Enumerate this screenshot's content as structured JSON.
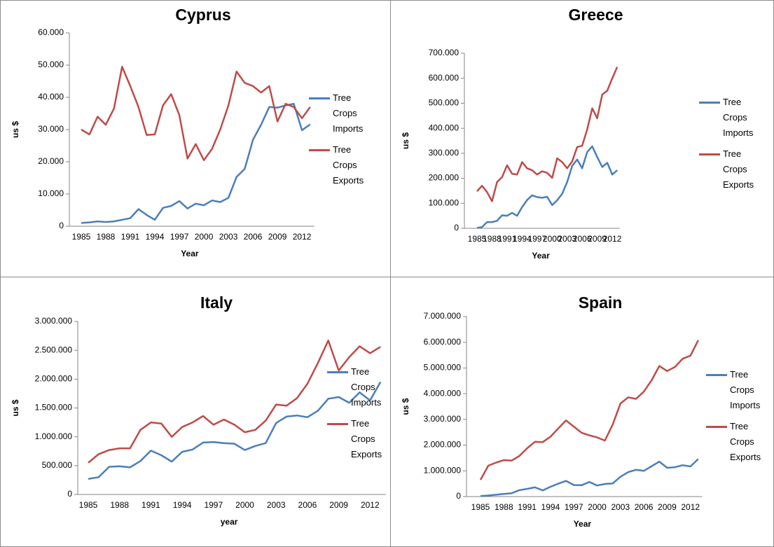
{
  "chart_data": [
    {
      "type": "line",
      "title": "Cyprus",
      "xlabel": "Year",
      "ylabel": "us $",
      "categories": [
        "1985",
        null,
        null,
        "1988",
        null,
        null,
        "1991",
        null,
        null,
        "1994",
        null,
        null,
        "1997",
        null,
        null,
        "2000",
        null,
        null,
        "2003",
        null,
        null,
        "2006",
        null,
        null,
        "2009",
        null,
        null,
        "2012",
        null
      ],
      "series": [
        {
          "name": "Tree Crops Imports",
          "color": "#4a7ebb",
          "values": [
            1000,
            1200,
            1500,
            1300,
            1500,
            2000,
            2500,
            5300,
            3500,
            2000,
            5700,
            6300,
            7800,
            5500,
            7000,
            6500,
            8000,
            7500,
            8800,
            15300,
            17800,
            26800,
            31500,
            37000,
            36800,
            37500,
            38000,
            29800,
            31600
          ]
        },
        {
          "name": "Tree Crops Exports",
          "color": "#be4b48",
          "values": [
            30000,
            28500,
            34000,
            31500,
            36500,
            49500,
            43500,
            37000,
            28300,
            28500,
            37500,
            41000,
            34500,
            21000,
            25500,
            20500,
            24000,
            30000,
            37500,
            48000,
            44500,
            43500,
            41500,
            43500,
            32500,
            38000,
            37000,
            33500,
            37000
          ]
        }
      ],
      "ylim": [
        0,
        60000
      ],
      "yticks": [
        0,
        {
          "value": 10000,
          "label": "10.000"
        },
        {
          "value": 20000,
          "label": "20.000"
        },
        {
          "value": 30000,
          "label": "30.000"
        },
        {
          "value": 40000,
          "label": "40.000"
        },
        {
          "value": 50000,
          "label": "50.000"
        },
        {
          "value": 60000,
          "label": "60.000"
        }
      ],
      "legend": "right"
    },
    {
      "type": "line",
      "title": "Greece",
      "xlabel": "Year",
      "ylabel": "us $",
      "categories": [
        "1985",
        null,
        null,
        "1988",
        null,
        null,
        "1991",
        null,
        null,
        "1994",
        null,
        null,
        "1997",
        null,
        null,
        "2000",
        null,
        null,
        "2003",
        null,
        null,
        "2006",
        null,
        null,
        "2009",
        null,
        null,
        "2012",
        null
      ],
      "series": [
        {
          "name": "Tree Crops Imports",
          "color": "#4a7ebb",
          "values": [
            2000,
            5000,
            25000,
            25000,
            30000,
            52000,
            50000,
            62000,
            50000,
            85000,
            113000,
            132000,
            125000,
            122000,
            126000,
            93000,
            112000,
            138000,
            185000,
            250000,
            275000,
            240000,
            305000,
            328000,
            285000,
            245000,
            262000,
            215000,
            232000
          ]
        },
        {
          "name": "Tree Crops Exports",
          "color": "#be4b48",
          "values": [
            148000,
            170000,
            145000,
            108000,
            185000,
            205000,
            252000,
            218000,
            215000,
            265000,
            240000,
            232000,
            215000,
            228000,
            222000,
            202000,
            280000,
            265000,
            240000,
            268000,
            325000,
            330000,
            395000,
            480000,
            440000,
            535000,
            550000,
            600000,
            645000
          ]
        }
      ],
      "ylim": [
        0,
        700000
      ],
      "yticks": [
        0,
        {
          "value": 100000,
          "label": "100.000"
        },
        {
          "value": 200000,
          "label": "200.000"
        },
        {
          "value": 300000,
          "label": "300.000"
        },
        {
          "value": 400000,
          "label": "400.000"
        },
        {
          "value": 500000,
          "label": "500.000"
        },
        {
          "value": 600000,
          "label": "600.000"
        },
        {
          "value": 700000,
          "label": "700.000"
        }
      ],
      "legend": "right"
    },
    {
      "type": "line",
      "title": "Italy",
      "xlabel": "year",
      "ylabel": "us $",
      "categories": [
        "1985",
        null,
        null,
        "1988",
        null,
        null,
        "1991",
        null,
        null,
        "1994",
        null,
        null,
        "1997",
        null,
        null,
        "2000",
        null,
        null,
        "2003",
        null,
        null,
        "2006",
        null,
        null,
        "2009",
        null,
        null,
        "2012",
        null
      ],
      "series": [
        {
          "name": "Tree Crops Imports",
          "color": "#4a7ebb",
          "values": [
            270000,
            300000,
            480000,
            490000,
            470000,
            580000,
            760000,
            680000,
            570000,
            740000,
            780000,
            900000,
            910000,
            890000,
            880000,
            770000,
            840000,
            890000,
            1240000,
            1350000,
            1370000,
            1340000,
            1450000,
            1660000,
            1690000,
            1590000,
            1770000,
            1630000,
            1950000
          ]
        },
        {
          "name": "Tree Crops Exports",
          "color": "#be4b48",
          "values": [
            550000,
            700000,
            770000,
            800000,
            800000,
            1120000,
            1250000,
            1230000,
            1000000,
            1170000,
            1250000,
            1360000,
            1210000,
            1300000,
            1210000,
            1080000,
            1120000,
            1280000,
            1560000,
            1540000,
            1670000,
            1920000,
            2280000,
            2670000,
            2150000,
            2380000,
            2570000,
            2450000,
            2560000
          ]
        }
      ],
      "ylim": [
        0,
        3000000
      ],
      "yticks": [
        0,
        {
          "value": 500000,
          "label": "500.000"
        },
        {
          "value": 1000000,
          "label": "1.000.000"
        },
        {
          "value": 1500000,
          "label": "1.500.000"
        },
        {
          "value": 2000000,
          "label": "2.000.000"
        },
        {
          "value": 2500000,
          "label": "2.500.000"
        },
        {
          "value": 3000000,
          "label": "3.000.000"
        }
      ],
      "legend": "right"
    },
    {
      "type": "line",
      "title": "Spain",
      "xlabel": "Year",
      "ylabel": "us $",
      "categories": [
        "1985",
        null,
        null,
        "1988",
        null,
        null,
        "1991",
        null,
        null,
        "1994",
        null,
        null,
        "1997",
        null,
        null,
        "2000",
        null,
        null,
        "2003",
        null,
        null,
        "2006",
        null,
        null,
        "2009",
        null,
        null,
        "2012",
        null
      ],
      "series": [
        {
          "name": "Tree Crops Imports",
          "color": "#4a7ebb",
          "values": [
            20000,
            40000,
            70000,
            100000,
            130000,
            250000,
            300000,
            360000,
            240000,
            380000,
            500000,
            610000,
            450000,
            440000,
            570000,
            430000,
            490000,
            510000,
            770000,
            950000,
            1040000,
            1000000,
            1180000,
            1360000,
            1120000,
            1140000,
            1220000,
            1170000,
            1460000
          ]
        },
        {
          "name": "Tree Crops Exports",
          "color": "#be4b48",
          "values": [
            650000,
            1200000,
            1320000,
            1420000,
            1400000,
            1580000,
            1880000,
            2130000,
            2120000,
            2330000,
            2650000,
            2960000,
            2720000,
            2480000,
            2380000,
            2300000,
            2180000,
            2800000,
            3620000,
            3860000,
            3800000,
            4080000,
            4520000,
            5080000,
            4880000,
            5040000,
            5360000,
            5480000,
            6080000
          ]
        }
      ],
      "ylim": [
        0,
        7000000
      ],
      "yticks": [
        0,
        {
          "value": 1000000,
          "label": "1.000.000"
        },
        {
          "value": 2000000,
          "label": "2.000.000"
        },
        {
          "value": 3000000,
          "label": "3.000.000"
        },
        {
          "value": 4000000,
          "label": "4.000.000"
        },
        {
          "value": 5000000,
          "label": "5.000.000"
        },
        {
          "value": 6000000,
          "label": "6.000.000"
        },
        {
          "value": 7000000,
          "label": "7.000.000"
        }
      ],
      "legend": "right"
    }
  ]
}
